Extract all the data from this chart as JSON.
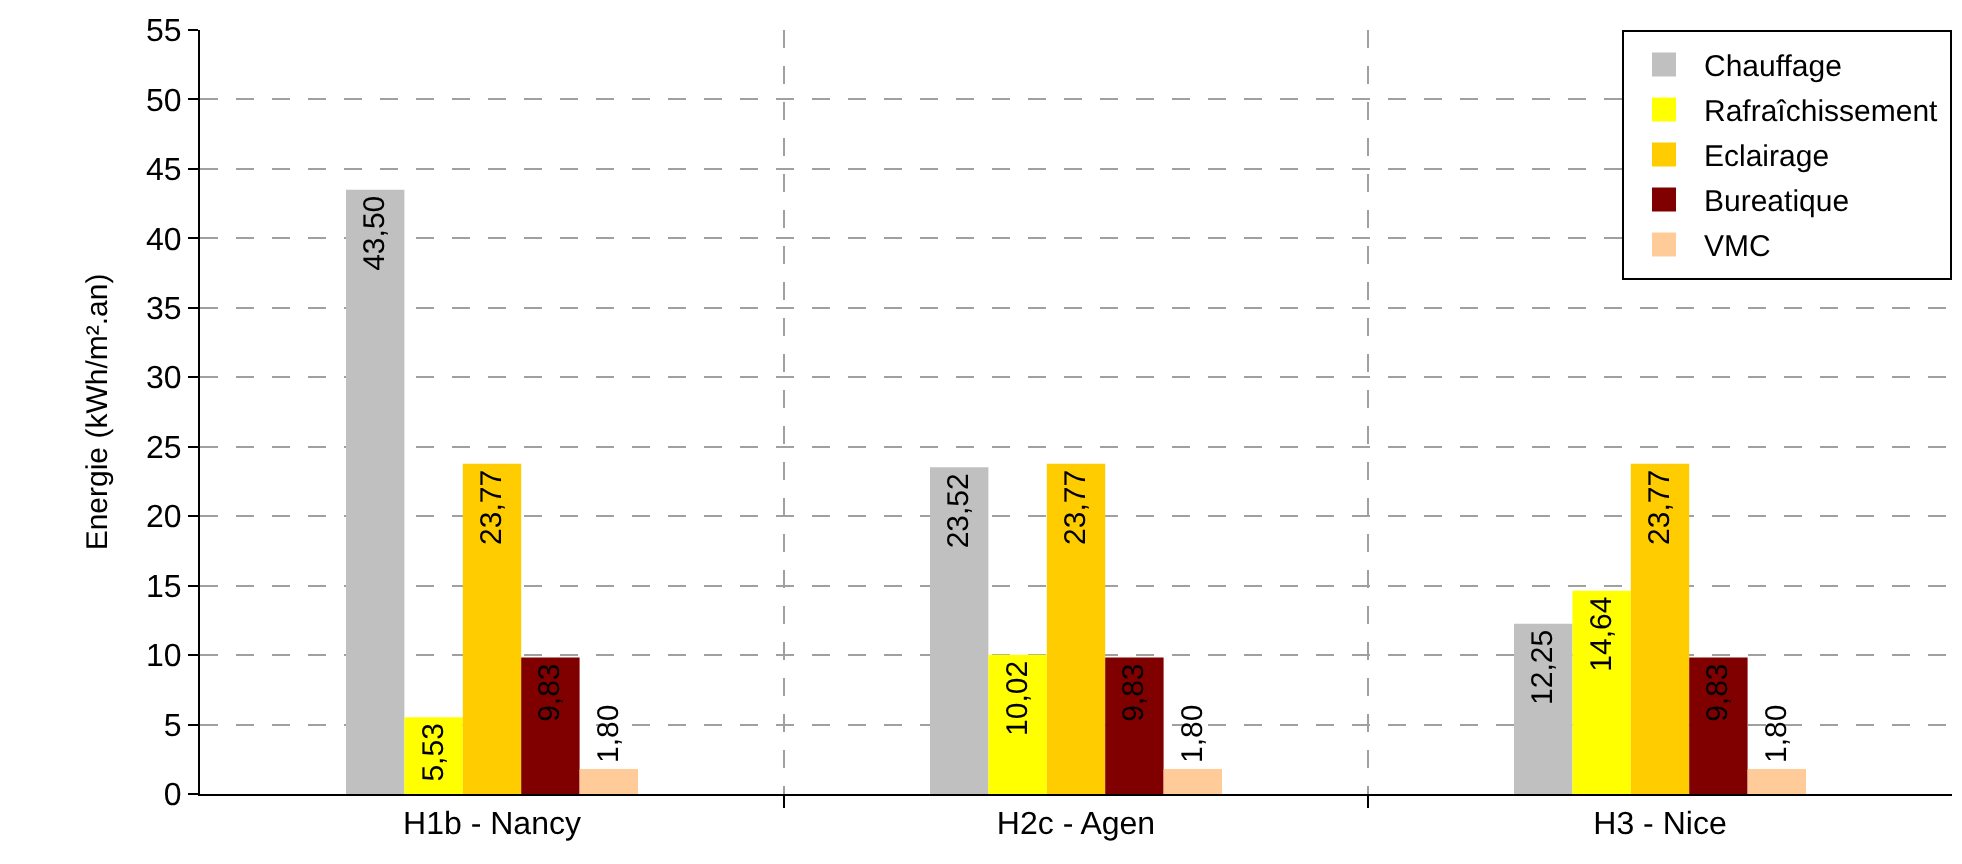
{
  "chart_data": {
    "type": "bar",
    "ylabel": "Energie (kWh/m².an)",
    "categories": [
      "H1b - Nancy",
      "H2c - Agen",
      "H3 - Nice"
    ],
    "series": [
      {
        "name": "Chauffage",
        "color": "#c0c0c0",
        "values": [
          43.5,
          23.52,
          12.25
        ],
        "value_labels": [
          "43,50",
          "23,52",
          "12,25"
        ]
      },
      {
        "name": "Rafraîchissement",
        "color": "#ffff00",
        "values": [
          5.53,
          10.02,
          14.64
        ],
        "value_labels": [
          "5,53",
          "10,02",
          "14,64"
        ]
      },
      {
        "name": "Eclairage",
        "color": "#ffcc00",
        "values": [
          23.77,
          23.77,
          23.77
        ],
        "value_labels": [
          "23,77",
          "23,77",
          "23,77"
        ]
      },
      {
        "name": "Bureatique",
        "color": "#800000",
        "values": [
          9.83,
          9.83,
          9.83
        ],
        "value_labels": [
          "9,83",
          "9,83",
          "9,83"
        ]
      },
      {
        "name": "VMC",
        "color": "#ffcc99",
        "values": [
          1.8,
          1.8,
          1.8
        ],
        "value_labels": [
          "1,80",
          "1,80",
          "1,80"
        ]
      }
    ],
    "ylim": [
      0,
      55
    ],
    "yticks": [
      0,
      5,
      10,
      15,
      20,
      25,
      30,
      35,
      40,
      45,
      50,
      55
    ],
    "grid": true,
    "legend": "top right"
  }
}
